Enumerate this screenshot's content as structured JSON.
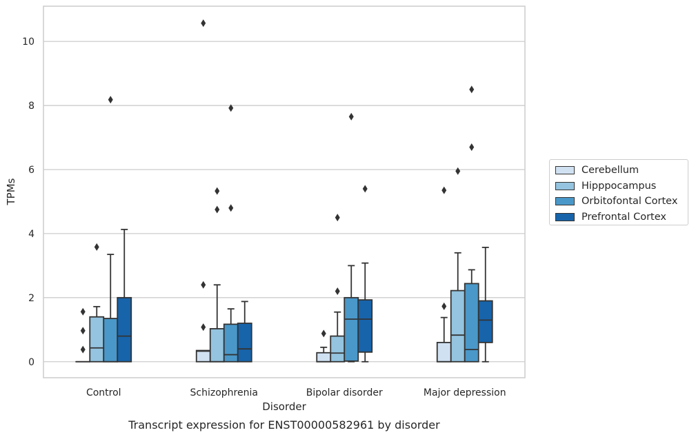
{
  "chart_data": {
    "type": "box",
    "title": "",
    "xlabel": "Disorder",
    "ylabel": "TPMs",
    "caption": "Transcript expression for ENST00000582961 by disorder",
    "ylim": [
      -0.5,
      11.1
    ],
    "yticks": [
      0,
      2,
      4,
      6,
      8,
      10
    ],
    "grid": "horizontal",
    "legend_position": "right",
    "categories": [
      "Control",
      "Schizophrenia",
      "Bipolar disorder",
      "Major depression"
    ],
    "series": [
      {
        "name": "Cerebellum",
        "color": "#d0e1f2",
        "boxes": [
          {
            "min": 0,
            "q1": 0,
            "median": 0,
            "q3": 0,
            "max": 0,
            "outliers": [
              0.38,
              0.97,
              1.56
            ]
          },
          {
            "min": 0,
            "q1": 0,
            "median": 0.33,
            "q3": 0.35,
            "max": 0.35,
            "outliers": [
              1.08,
              2.4,
              10.57
            ]
          },
          {
            "min": 0,
            "q1": 0,
            "median": 0,
            "q3": 0.28,
            "max": 0.45,
            "outliers": [
              0.88
            ]
          },
          {
            "min": 0,
            "q1": 0,
            "median": 0,
            "q3": 0.6,
            "max": 1.38,
            "outliers": [
              1.73,
              5.35
            ]
          }
        ]
      },
      {
        "name": "Hipppocampus",
        "color": "#94c4df",
        "boxes": [
          {
            "min": 0,
            "q1": 0,
            "median": 0.43,
            "q3": 1.4,
            "max": 1.72,
            "outliers": [
              3.58
            ]
          },
          {
            "min": 0,
            "q1": 0,
            "median": 0,
            "q3": 1.03,
            "max": 2.4,
            "outliers": [
              4.75,
              5.33
            ]
          },
          {
            "min": 0,
            "q1": 0,
            "median": 0.27,
            "q3": 0.8,
            "max": 1.55,
            "outliers": [
              2.2,
              4.5
            ]
          },
          {
            "min": 0,
            "q1": 0,
            "median": 0.83,
            "q3": 2.22,
            "max": 3.4,
            "outliers": [
              5.95
            ]
          }
        ]
      },
      {
        "name": "Orbitofontal Cortex",
        "color": "#4a98c9",
        "boxes": [
          {
            "min": 0,
            "q1": 0,
            "median": 0,
            "q3": 1.35,
            "max": 3.35,
            "outliers": [
              8.18
            ]
          },
          {
            "min": 0,
            "q1": 0,
            "median": 0.22,
            "q3": 1.17,
            "max": 1.65,
            "outliers": [
              4.8,
              7.92
            ]
          },
          {
            "min": 0,
            "q1": 0.02,
            "median": 1.33,
            "q3": 2.0,
            "max": 3.0,
            "outliers": [
              7.65
            ]
          },
          {
            "min": 0,
            "q1": 0,
            "median": 0.38,
            "q3": 2.44,
            "max": 2.87,
            "outliers": [
              6.7,
              8.5
            ]
          }
        ]
      },
      {
        "name": "Prefrontal Cortex",
        "color": "#1764ab",
        "boxes": [
          {
            "min": 0,
            "q1": 0,
            "median": 0.8,
            "q3": 2.0,
            "max": 4.13,
            "outliers": []
          },
          {
            "min": 0,
            "q1": 0,
            "median": 0.4,
            "q3": 1.2,
            "max": 1.88,
            "outliers": []
          },
          {
            "min": 0,
            "q1": 0.3,
            "median": 1.33,
            "q3": 1.93,
            "max": 3.08,
            "outliers": [
              5.4
            ]
          },
          {
            "min": 0,
            "q1": 0.6,
            "median": 1.3,
            "q3": 1.9,
            "max": 3.57,
            "outliers": []
          }
        ]
      }
    ]
  }
}
